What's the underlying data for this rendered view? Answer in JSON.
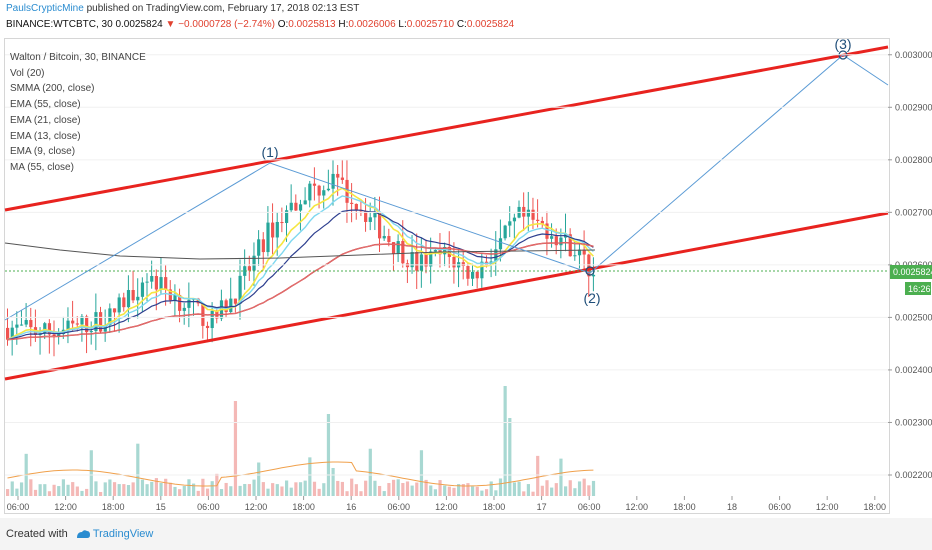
{
  "header": {
    "author": "PaulsCrypticMine",
    "published_text": " published on TradingView.com, February 17, 2018 02:13 EST",
    "symbol": "BINANCE:WTCBTC, 30",
    "last": "0.0025824",
    "change": "▼ −0.0000728 (−2.74%)",
    "open_label": "O:",
    "open": "0.0025813",
    "high_label": "H:",
    "high": "0.0026006",
    "low_label": "L:",
    "low": "0.0025710",
    "close_label": "C:",
    "close": "0.0025824"
  },
  "legend": [
    "Walton / Bitcoin, 30, BINANCE",
    "Vol (20)",
    "SMMA (200, close)",
    "EMA (55, close)",
    "EMA (21, close)",
    "EMA (13, close)",
    "EMA (9, close)",
    "MA (55, close)"
  ],
  "price_badge": {
    "value": "0.0025824",
    "countdown": "16:26"
  },
  "footer": {
    "created_with": "Created with",
    "brand": "TradingView"
  },
  "colors": {
    "up": "#26a69a",
    "down": "#ef5350",
    "channel": "#e8231f",
    "projection": "#5b9bd5",
    "badge": "#4caf50"
  },
  "chart_data": {
    "type": "candlestick",
    "y_axis": {
      "min": 0.00216,
      "max": 0.00303,
      "ticks": [
        "0.0022000",
        "0.0023000",
        "0.0024000",
        "0.0025000",
        "0.0026000",
        "0.0027000",
        "0.0028000",
        "0.0029000",
        "0.0030000"
      ]
    },
    "x_axis": {
      "ticks": [
        "06:00",
        "12:00",
        "18:00",
        "15",
        "06:00",
        "12:00",
        "18:00",
        "16",
        "06:00",
        "12:00",
        "18:00",
        "17",
        "06:00",
        "12:00",
        "18:00",
        "18",
        "06:00",
        "12:00",
        "18:00"
      ]
    },
    "waves": [
      {
        "label": "(1)",
        "price": 0.00279
      },
      {
        "label": "(2)",
        "price": 0.00257
      },
      {
        "label": "(3)",
        "price": 0.003
      }
    ]
  }
}
